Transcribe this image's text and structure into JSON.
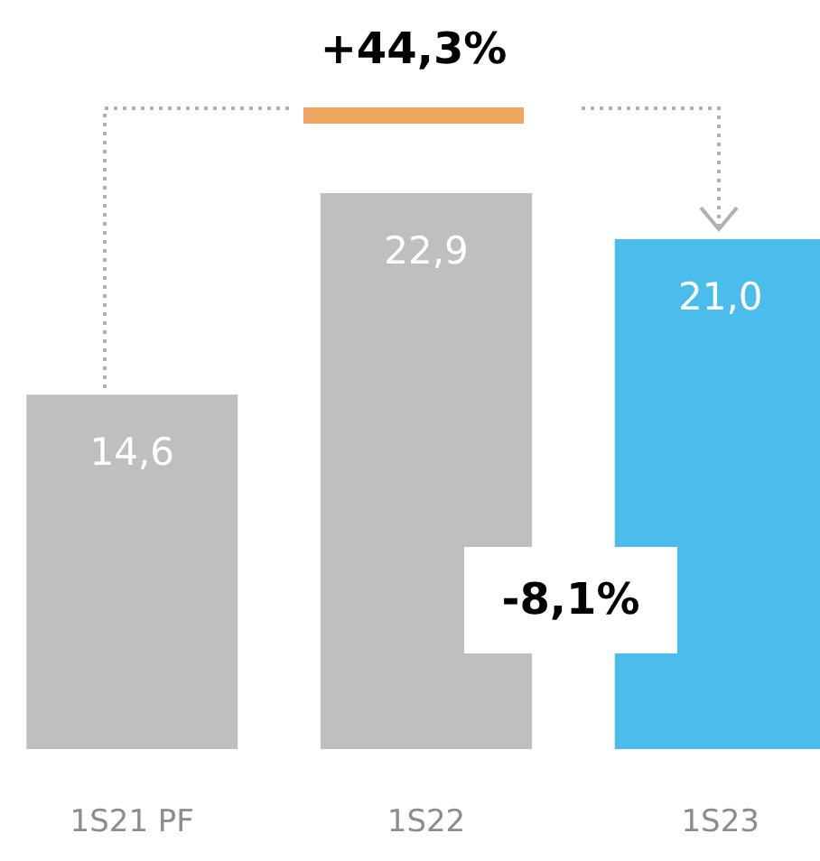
{
  "chart_data": {
    "type": "bar",
    "categories": [
      "1S21 PF",
      "1S22",
      "1S23"
    ],
    "values": [
      14.6,
      22.9,
      21.0
    ],
    "colors": [
      "#bfbfbf",
      "#bfbfbf",
      "#4bbded"
    ],
    "value_labels": [
      "14,6",
      "22,9",
      "21,0"
    ],
    "annotations": [
      "+44,3%",
      "-8,1%"
    ],
    "grid": false
  }
}
